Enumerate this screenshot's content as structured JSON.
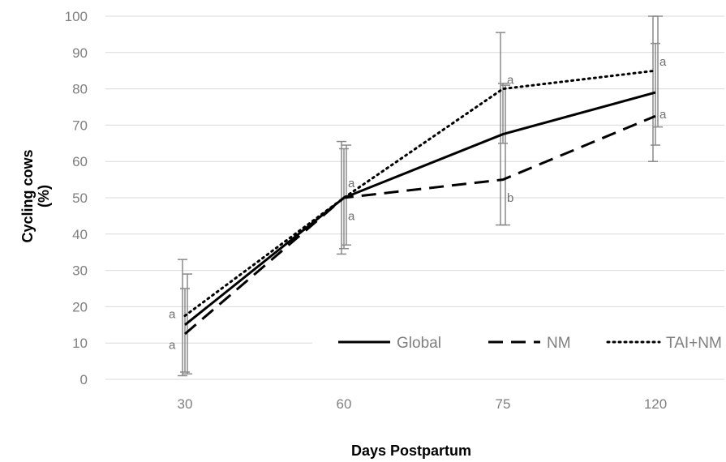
{
  "chart_data": {
    "type": "line",
    "xlabel": "Days Postpartum",
    "ylabel_line1": "Cycling cows",
    "ylabel_line2": "(%)",
    "categories": [
      "30",
      "60",
      "75",
      "120"
    ],
    "ylim": [
      0,
      100
    ],
    "yticks": [
      "0",
      "10",
      "20",
      "30",
      "40",
      "50",
      "60",
      "70",
      "80",
      "90",
      "100"
    ],
    "grid": true,
    "legend_position": "bottom-right",
    "series": [
      {
        "name": "Global",
        "style": "solid",
        "values": [
          15,
          50,
          67.5,
          79
        ],
        "error_low": [
          1,
          34.5,
          42.5,
          60
        ],
        "error_high": [
          33,
          65.5,
          95.5,
          100
        ]
      },
      {
        "name": "NM",
        "style": "dashed",
        "values": [
          12.5,
          50,
          55,
          72.5
        ],
        "error_low": [
          2,
          36,
          65,
          64.5
        ],
        "error_high": [
          25,
          63.5,
          81.5,
          92.5
        ]
      },
      {
        "name": "TAI+NM",
        "style": "dotted",
        "values": [
          17.5,
          50,
          80,
          85
        ],
        "error_low": [
          1.5,
          37,
          42.5,
          69.5
        ],
        "error_high": [
          29,
          64.5,
          81,
          100
        ]
      }
    ],
    "annotations": [
      {
        "text": "a",
        "category": "30",
        "y": 18
      },
      {
        "text": "a",
        "category": "30",
        "y": 9.5
      },
      {
        "text": "a",
        "category": "60",
        "y": 54
      },
      {
        "text": "a",
        "category": "60",
        "y": 45
      },
      {
        "text": "a",
        "category": "75",
        "y": 82.5
      },
      {
        "text": "b",
        "category": "75",
        "y": 50
      },
      {
        "text": "a",
        "category": "120",
        "y": 87.5
      },
      {
        "text": "a",
        "category": "120",
        "y": 73
      }
    ]
  }
}
